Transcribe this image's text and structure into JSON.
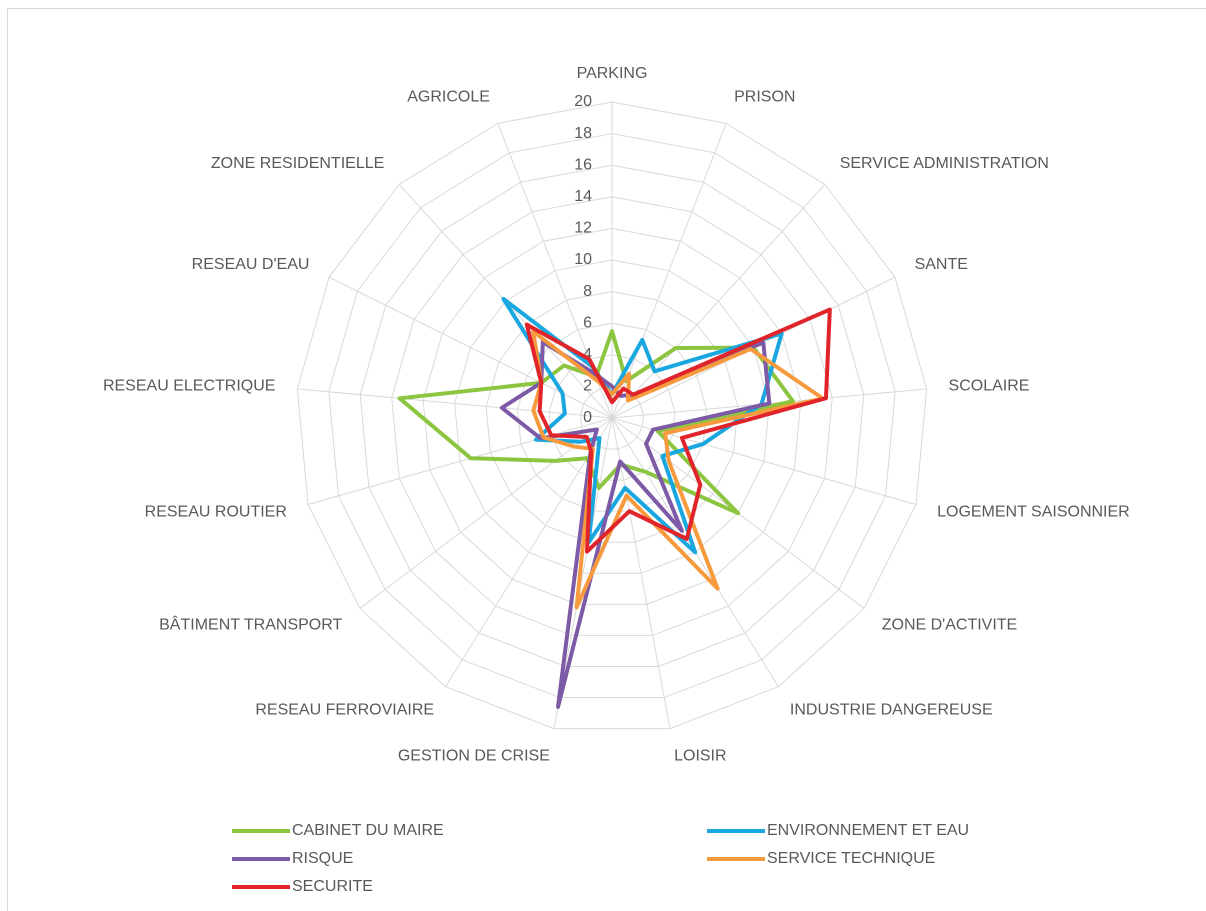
{
  "chart_data": {
    "type": "radar",
    "categories": [
      "PARKING",
      "PRISON",
      "SERVICE ADMINISTRATION",
      "SANTE",
      "SCOLAIRE",
      "LOGEMENT SAISONNIER",
      "ZONE D'ACTIVITE",
      "INDUSTRIE DANGEREUSE",
      "LOISIR",
      "GESTION DE CRISE",
      "RESEAU FERROVIAIRE",
      "BÂTIMENT  TRANSPORT",
      "RESEAU ROUTIER",
      "RESEAU ELECTRIQUE",
      "RESEAU D'EAU",
      "ZONE RESIDENTIELLE",
      "AGRICOLE"
    ],
    "series": [
      {
        "name": "CABINET DU MAIRE",
        "color": "#8cc540",
        "values": [
          5.5,
          2.5,
          6,
          10,
          11.5,
          3,
          10,
          4,
          3,
          4.5,
          3,
          4.5,
          9.3,
          13.5,
          5,
          4.5,
          2.8
        ]
      },
      {
        "name": "ENVIRONNEMENT ET EAU",
        "color": "#1aa7e0",
        "values": [
          1.5,
          5.3,
          4,
          12,
          9.5,
          6,
          4,
          10,
          4.5,
          8,
          1.5,
          2.5,
          5,
          3,
          3.5,
          10.2,
          3.5
        ]
      },
      {
        "name": "RISQUE",
        "color": "#7d5aa6",
        "values": [
          2,
          1.5,
          2,
          10.7,
          10,
          2.7,
          2.7,
          8.4,
          2.8,
          18.6,
          2.6,
          1.2,
          4.7,
          7,
          5,
          6.5,
          3
        ]
      },
      {
        "name": "SERVICE TECHNIQUE",
        "color": "#f79a3e",
        "values": [
          1.5,
          3,
          1.5,
          9.8,
          13.4,
          3.5,
          4.5,
          12.7,
          5,
          12.2,
          2.3,
          3,
          4.5,
          5,
          5,
          7.4,
          2.5
        ]
      },
      {
        "name": "SECURITE",
        "color": "#e0242a",
        "values": [
          1,
          2,
          2,
          15.4,
          13.6,
          4.6,
          7,
          9,
          6,
          8.6,
          2.5,
          2,
          4,
          4.6,
          5,
          8,
          4
        ]
      }
    ],
    "ylim": [
      0,
      20
    ],
    "yticks": [
      0,
      2,
      4,
      6,
      8,
      10,
      12,
      14,
      16,
      18,
      20
    ],
    "grid": true
  }
}
